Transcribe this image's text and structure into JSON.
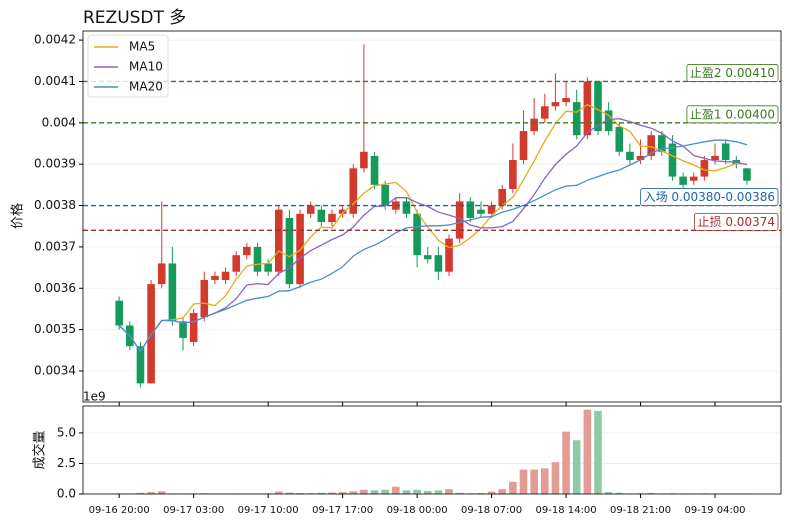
{
  "chart_data": [
    {
      "type": "candlestick",
      "title": "REZUSDT  多",
      "ylabel": "价格",
      "up_color": "#d23a2d",
      "down_color": "#159a5c",
      "open": [
        0.00357,
        0.00351,
        0.00346,
        0.00337,
        0.00361,
        0.00366,
        0.00352,
        0.00347,
        0.00353,
        0.00362,
        0.00362,
        0.00364,
        0.00368,
        0.0037,
        0.00366,
        0.00364,
        0.00377,
        0.00361,
        0.00378,
        0.00379,
        0.00376,
        0.00378,
        0.00378,
        0.00389,
        0.00392,
        0.00385,
        0.00379,
        0.00381,
        0.00378,
        0.00368,
        0.00368,
        0.00364,
        0.00372,
        0.00381,
        0.00379,
        0.00378,
        0.0038,
        0.00384,
        0.00391,
        0.00398,
        0.00401,
        0.00404,
        0.00405,
        0.00405,
        0.00397,
        0.0041,
        0.00403,
        0.00399,
        0.00393,
        0.00391,
        0.00392,
        0.00397,
        0.00395,
        0.00387,
        0.00386,
        0.00387,
        0.00391,
        0.00395,
        0.00391,
        0.00389
      ],
      "high": [
        0.00358,
        0.00352,
        0.00347,
        0.00362,
        0.00381,
        0.0037,
        0.00353,
        0.00355,
        0.00364,
        0.00364,
        0.00365,
        0.00369,
        0.00371,
        0.00371,
        0.00367,
        0.0038,
        0.00379,
        0.00379,
        0.00381,
        0.0038,
        0.00379,
        0.0038,
        0.0039,
        0.00419,
        0.00393,
        0.00386,
        0.00382,
        0.00382,
        0.00379,
        0.0037,
        0.0037,
        0.00373,
        0.00383,
        0.00382,
        0.00381,
        0.00381,
        0.00385,
        0.00395,
        0.00403,
        0.00406,
        0.00407,
        0.00412,
        0.0041,
        0.00408,
        0.00411,
        0.0041,
        0.00405,
        0.004,
        0.00395,
        0.00396,
        0.00398,
        0.00398,
        0.00397,
        0.00388,
        0.00388,
        0.00392,
        0.00395,
        0.00396,
        0.00392,
        0.00389
      ],
      "low": [
        0.0035,
        0.00345,
        0.00336,
        0.00337,
        0.0036,
        0.00351,
        0.00345,
        0.00346,
        0.00352,
        0.00361,
        0.00361,
        0.00363,
        0.00367,
        0.00363,
        0.00363,
        0.00363,
        0.0036,
        0.0036,
        0.00377,
        0.00375,
        0.00375,
        0.00377,
        0.00377,
        0.00388,
        0.00384,
        0.00379,
        0.00378,
        0.00377,
        0.00365,
        0.00366,
        0.00362,
        0.00363,
        0.00371,
        0.00376,
        0.00377,
        0.00377,
        0.00379,
        0.00383,
        0.0039,
        0.00397,
        0.004,
        0.00403,
        0.00404,
        0.00396,
        0.00396,
        0.00397,
        0.00397,
        0.00392,
        0.0039,
        0.0039,
        0.00391,
        0.00392,
        0.00386,
        0.00384,
        0.00385,
        0.00386,
        0.0039,
        0.0039,
        0.00389,
        0.00385
      ],
      "close": [
        0.00351,
        0.00346,
        0.00337,
        0.00361,
        0.00366,
        0.00352,
        0.00348,
        0.00354,
        0.00362,
        0.00363,
        0.00364,
        0.00368,
        0.0037,
        0.00364,
        0.00364,
        0.00379,
        0.00361,
        0.00378,
        0.0038,
        0.00376,
        0.00378,
        0.00379,
        0.00389,
        0.00393,
        0.00385,
        0.0038,
        0.00381,
        0.00378,
        0.00368,
        0.00367,
        0.00364,
        0.00372,
        0.00381,
        0.00377,
        0.00378,
        0.0038,
        0.00384,
        0.00391,
        0.00398,
        0.00401,
        0.00404,
        0.00405,
        0.00406,
        0.00397,
        0.0041,
        0.00398,
        0.00398,
        0.00393,
        0.00391,
        0.00392,
        0.00397,
        0.00393,
        0.00387,
        0.00385,
        0.00387,
        0.00391,
        0.00392,
        0.00391,
        0.0039,
        0.00386
      ],
      "series": [
        {
          "name": "MA5",
          "color": "#e3ad17",
          "values": [
            0.00351,
            0.003485,
            0.003447,
            0.003488,
            0.003522,
            0.003524,
            0.003528,
            0.003562,
            0.003564,
            0.003558,
            0.003582,
            0.003622,
            0.003654,
            0.003658,
            0.00366,
            0.00369,
            0.003676,
            0.003692,
            0.003724,
            0.003748,
            0.003746,
            0.003782,
            0.003804,
            0.00383,
            0.003848,
            0.003852,
            0.003856,
            0.003834,
            0.003784,
            0.003748,
            0.003716,
            0.003698,
            0.003704,
            0.003722,
            0.003744,
            0.003776,
            0.0038,
            0.00382,
            0.003862,
            0.003908,
            0.003956,
            0.003998,
            0.004028,
            0.004026,
            0.004044,
            0.004032,
            0.004018,
            0.003992,
            0.00398,
            0.003944,
            0.003942,
            0.003932,
            0.00392,
            0.003908,
            0.003898,
            0.003886,
            0.003884,
            0.003892,
            0.003902,
            0.0039
          ]
        },
        {
          "name": "MA10",
          "color": "#8a63c8",
          "values": [
            0.00351,
            0.003485,
            0.003447,
            0.003488,
            0.003522,
            0.003522,
            0.003516,
            0.003519,
            0.00353,
            0.00354,
            0.003553,
            0.003575,
            0.003608,
            0.003611,
            0.003609,
            0.003636,
            0.003649,
            0.003673,
            0.003691,
            0.003704,
            0.003718,
            0.003729,
            0.003748,
            0.003777,
            0.003798,
            0.003799,
            0.003819,
            0.003819,
            0.003807,
            0.003798,
            0.003784,
            0.003777,
            0.003769,
            0.003753,
            0.003746,
            0.003746,
            0.003749,
            0.003762,
            0.003792,
            0.003826,
            0.003866,
            0.003899,
            0.003924,
            0.003944,
            0.003976,
            0.003994,
            0.004008,
            0.00401,
            0.004003,
            0.003994,
            0.003987,
            0.003975,
            0.003956,
            0.003944,
            0.003921,
            0.003914,
            0.003908,
            0.003906,
            0.003905,
            0.003899
          ]
        },
        {
          "name": "MA20",
          "color": "#4a8fc9",
          "values": [
            0.00351,
            0.003485,
            0.003447,
            0.003488,
            0.003522,
            0.003522,
            0.003516,
            0.003519,
            0.00353,
            0.00354,
            0.003549,
            0.00356,
            0.003571,
            0.003576,
            0.00358,
            0.003593,
            0.003594,
            0.003604,
            0.003615,
            0.003622,
            0.003636,
            0.003652,
            0.003678,
            0.003694,
            0.003704,
            0.003718,
            0.003734,
            0.003746,
            0.003749,
            0.003751,
            0.003751,
            0.003753,
            0.003759,
            0.003765,
            0.003772,
            0.003773,
            0.003784,
            0.003791,
            0.0038,
            0.003812,
            0.003825,
            0.003838,
            0.003847,
            0.003849,
            0.003861,
            0.00387,
            0.003879,
            0.003886,
            0.003898,
            0.00391,
            0.003927,
            0.003937,
            0.00394,
            0.003944,
            0.003949,
            0.003954,
            0.003958,
            0.003958,
            0.003954,
            0.003947
          ]
        }
      ],
      "levels": [
        {
          "label": "止盈2 0.00410",
          "value": 0.0041,
          "color": "#3f7a22"
        },
        {
          "label": "止盈1 0.00400",
          "value": 0.004,
          "color": "#3f7a22"
        },
        {
          "label": "入场 0.00380-0.00386",
          "value": 0.0038,
          "color": "#1f65a8"
        },
        {
          "label": "止损 0.00374",
          "value": 0.00374,
          "color": "#a33030"
        }
      ],
      "ylim": [
        0.003325,
        0.004222
      ],
      "yticks": [
        0.0034,
        0.0035,
        0.0036,
        0.0037,
        0.0038,
        0.0039,
        0.004,
        0.0041,
        0.0042
      ],
      "grid": true,
      "legend": "upper left"
    },
    {
      "type": "bar",
      "ylabel": "成交量",
      "offset_text": "1e9",
      "categories": [
        "09-16 20:00",
        null,
        null,
        null,
        null,
        null,
        null,
        "09-17 03:00",
        null,
        null,
        null,
        null,
        null,
        null,
        "09-17 10:00",
        null,
        null,
        null,
        null,
        null,
        null,
        "09-17 17:00",
        null,
        null,
        null,
        null,
        null,
        null,
        "09-18 00:00",
        null,
        null,
        null,
        null,
        null,
        null,
        "09-18 07:00",
        null,
        null,
        null,
        null,
        null,
        null,
        "09-18 14:00",
        null,
        null,
        null,
        null,
        null,
        null,
        "09-18 21:00",
        null,
        null,
        null,
        null,
        null,
        null,
        "09-19 04:00",
        null,
        null,
        null
      ],
      "values": [
        0.05,
        0.03,
        0.1,
        0.15,
        0.22,
        0.05,
        0.03,
        0.05,
        0.06,
        0.04,
        0.03,
        0.05,
        0.03,
        0.04,
        0.05,
        0.2,
        0.12,
        0.08,
        0.06,
        0.1,
        0.12,
        0.15,
        0.22,
        0.35,
        0.3,
        0.35,
        0.6,
        0.3,
        0.35,
        0.25,
        0.3,
        0.4,
        0.1,
        0.06,
        0.08,
        0.2,
        0.4,
        1.0,
        2.0,
        2.0,
        2.1,
        2.6,
        5.1,
        4.4,
        6.9,
        6.8,
        0.15,
        0.1,
        0.05,
        0.06,
        0.08,
        0.05,
        0.06,
        0.05,
        0.04,
        0.05,
        0.04,
        0.05,
        0.04,
        0.03
      ],
      "up_color": "#e49b96",
      "down_color": "#8fcaa8",
      "ylim": [
        0,
        7.2
      ],
      "yticks": [
        {
          "value": 0,
          "label": "0.0"
        },
        {
          "value": 2.5,
          "label": "2.5"
        },
        {
          "value": 5,
          "label": "5.0"
        }
      ],
      "grid": true
    }
  ]
}
